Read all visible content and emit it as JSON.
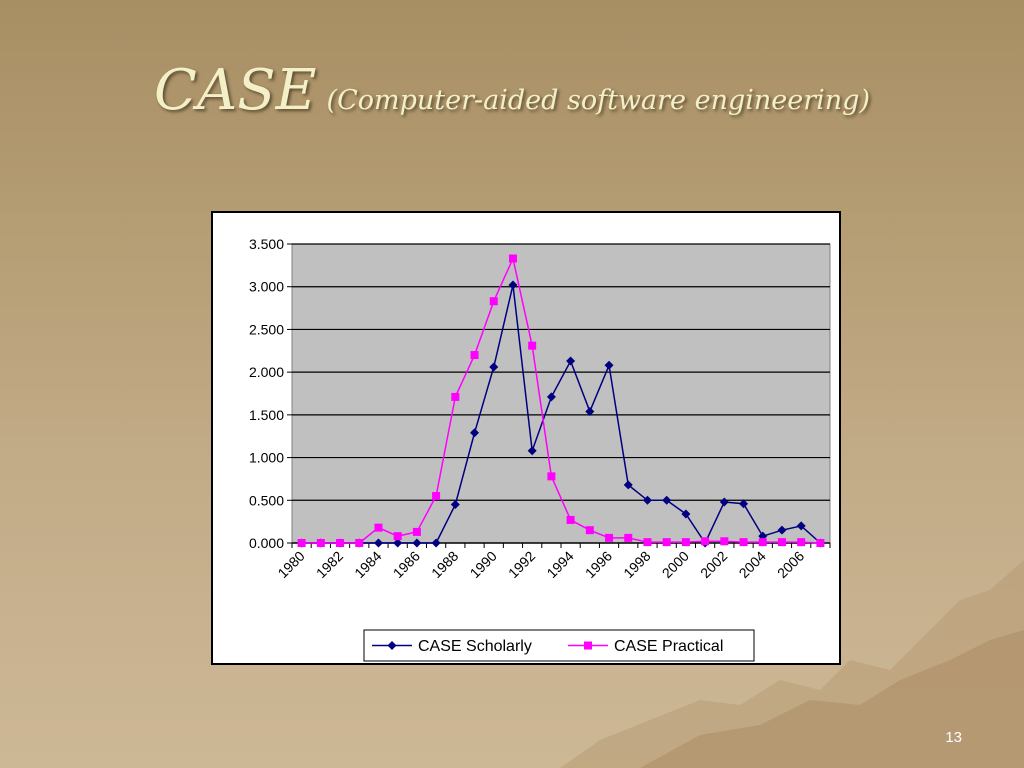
{
  "slide": {
    "title": "CASE",
    "subtitle": "(Computer-aided software engineering)",
    "page_number": "13"
  },
  "chart_data": {
    "type": "line",
    "x": [
      1980,
      1981,
      1982,
      1983,
      1984,
      1985,
      1986,
      1987,
      1988,
      1989,
      1990,
      1991,
      1992,
      1993,
      1994,
      1995,
      1996,
      1997,
      1998,
      1999,
      2000,
      2001,
      2002,
      2003,
      2004,
      2005,
      2006,
      2007
    ],
    "x_tick_labels": [
      "1980",
      "1982",
      "1984",
      "1986",
      "1988",
      "1990",
      "1992",
      "1994",
      "1996",
      "1998",
      "2000",
      "2002",
      "2004",
      "2006"
    ],
    "y_tick_labels": [
      "0.000",
      "0.500",
      "1.000",
      "1.500",
      "2.000",
      "2.500",
      "3.000",
      "3.500"
    ],
    "ylim": [
      0,
      3.5
    ],
    "grid": true,
    "legend_position": "bottom",
    "series": [
      {
        "name": "CASE Scholarly",
        "color": "#000080",
        "marker": "diamond",
        "values": [
          0.0,
          0.0,
          0.0,
          0.0,
          0.0,
          0.0,
          0.0,
          0.0,
          0.45,
          1.29,
          2.06,
          3.02,
          1.08,
          1.71,
          2.13,
          1.54,
          2.08,
          0.68,
          0.5,
          0.5,
          0.34,
          0.0,
          0.48,
          0.46,
          0.08,
          0.15,
          0.2,
          0.0
        ]
      },
      {
        "name": "CASE Practical",
        "color": "#ff00ff",
        "marker": "square",
        "values": [
          0.0,
          0.0,
          0.0,
          0.0,
          0.18,
          0.08,
          0.13,
          0.55,
          1.71,
          2.2,
          2.83,
          3.33,
          2.31,
          0.78,
          0.27,
          0.15,
          0.06,
          0.06,
          0.01,
          0.01,
          0.01,
          0.02,
          0.02,
          0.01,
          0.01,
          0.01,
          0.01,
          0.0
        ]
      }
    ]
  }
}
